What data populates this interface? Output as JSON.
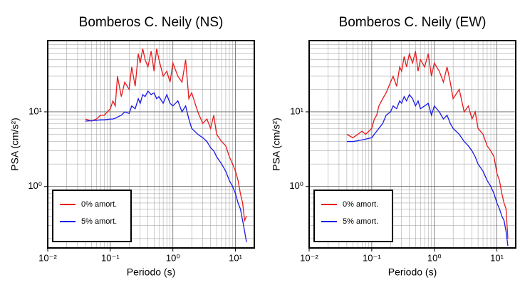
{
  "chart_data": [
    {
      "type": "line",
      "title": "Bomberos C. Neily (NS)",
      "xlabel": "Periodo (s)",
      "ylabel": "PSA (cm/s²)",
      "xscale": "log",
      "yscale": "log",
      "grid": true,
      "legend": "lower left",
      "xlim": [
        0.01,
        20
      ],
      "ylim": [
        0.15,
        90
      ],
      "xticks": [
        {
          "value": 0.01,
          "label": "10⁻²"
        },
        {
          "value": 0.1,
          "label": "10⁻¹"
        },
        {
          "value": 1,
          "label": "10⁰"
        },
        {
          "value": 10,
          "label": "10¹"
        }
      ],
      "yticks": [
        {
          "value": 1,
          "label": "10⁰"
        },
        {
          "value": 10,
          "label": "10¹"
        }
      ],
      "x": [
        0.04,
        0.05,
        0.06,
        0.07,
        0.08,
        0.09,
        0.1,
        0.11,
        0.12,
        0.13,
        0.15,
        0.17,
        0.2,
        0.22,
        0.25,
        0.28,
        0.3,
        0.33,
        0.36,
        0.4,
        0.45,
        0.5,
        0.55,
        0.6,
        0.7,
        0.8,
        0.9,
        1.0,
        1.2,
        1.4,
        1.6,
        1.8,
        2.0,
        2.5,
        3,
        3.5,
        4,
        4.5,
        5,
        6,
        7,
        8,
        9,
        10,
        11,
        12,
        13,
        14,
        15
      ],
      "series": [
        {
          "name": "0% amort.",
          "color": "#e8191b",
          "values": [
            8,
            7.5,
            8,
            9,
            9,
            10,
            11,
            14,
            12,
            30,
            16,
            25,
            20,
            40,
            22,
            60,
            45,
            70,
            50,
            40,
            65,
            35,
            70,
            50,
            30,
            35,
            25,
            45,
            30,
            25,
            50,
            15,
            18,
            10,
            7,
            8,
            6,
            9,
            5,
            4,
            3.5,
            2.5,
            2,
            1.6,
            1.2,
            0.8,
            0.6,
            0.35,
            0.4
          ]
        },
        {
          "name": "5% amort.",
          "color": "#1a1ae8",
          "values": [
            7.5,
            7.6,
            7.7,
            7.8,
            7.8,
            7.9,
            8,
            8,
            8.2,
            8.5,
            9,
            10,
            9.5,
            12,
            11,
            15,
            13,
            17,
            16,
            19,
            17,
            18,
            15,
            16,
            13,
            17,
            13,
            12,
            14,
            10,
            12,
            8,
            6,
            5,
            4.5,
            4,
            3.3,
            3,
            2.5,
            2,
            1.6,
            1.2,
            1,
            0.8,
            0.6,
            0.5,
            0.35,
            0.25,
            0.18
          ]
        }
      ]
    },
    {
      "type": "line",
      "title": "Bomberos C. Neily (EW)",
      "xlabel": "Periodo (s)",
      "ylabel": "PSA (cm/s²)",
      "xscale": "log",
      "yscale": "log",
      "grid": true,
      "legend": "lower left",
      "xlim": [
        0.01,
        20
      ],
      "ylim": [
        0.15,
        90
      ],
      "xticks": [
        {
          "value": 0.01,
          "label": "10⁻²"
        },
        {
          "value": 0.1,
          "label": "10⁻¹"
        },
        {
          "value": 1,
          "label": "10⁰"
        },
        {
          "value": 10,
          "label": "10¹"
        }
      ],
      "yticks": [
        {
          "value": 1,
          "label": "10⁰"
        },
        {
          "value": 10,
          "label": "10¹"
        }
      ],
      "x": [
        0.04,
        0.05,
        0.06,
        0.07,
        0.08,
        0.09,
        0.1,
        0.11,
        0.12,
        0.13,
        0.15,
        0.17,
        0.2,
        0.22,
        0.25,
        0.28,
        0.3,
        0.33,
        0.36,
        0.4,
        0.45,
        0.5,
        0.55,
        0.6,
        0.7,
        0.8,
        0.9,
        1.0,
        1.2,
        1.4,
        1.6,
        1.8,
        2.0,
        2.5,
        3,
        3.5,
        4,
        4.5,
        5,
        6,
        7,
        8,
        9,
        10,
        11,
        12,
        13,
        14,
        15
      ],
      "series": [
        {
          "name": "0% amort.",
          "color": "#e8191b",
          "values": [
            5,
            4.5,
            5,
            5.5,
            5,
            5.5,
            6,
            8,
            9,
            12,
            15,
            18,
            25,
            30,
            22,
            40,
            35,
            55,
            40,
            60,
            45,
            65,
            35,
            50,
            40,
            60,
            30,
            45,
            35,
            25,
            40,
            25,
            15,
            20,
            10,
            12,
            8,
            10,
            6,
            5,
            3.5,
            3,
            2.5,
            1.5,
            1.2,
            0.8,
            0.6,
            0.5,
            0.2
          ]
        },
        {
          "name": "5% amort.",
          "color": "#1a1ae8",
          "values": [
            4,
            4,
            4.1,
            4.2,
            4.3,
            4.4,
            4.5,
            5,
            5.5,
            6,
            7,
            9,
            10,
            12,
            11,
            14,
            13,
            16,
            14,
            17,
            15,
            12,
            14,
            11,
            12,
            13,
            9,
            12,
            10,
            8,
            9,
            7,
            6,
            5,
            4,
            3.5,
            3,
            2.5,
            2,
            1.6,
            1.2,
            1,
            0.8,
            0.6,
            0.5,
            0.4,
            0.35,
            0.25,
            0.16
          ]
        }
      ]
    }
  ]
}
